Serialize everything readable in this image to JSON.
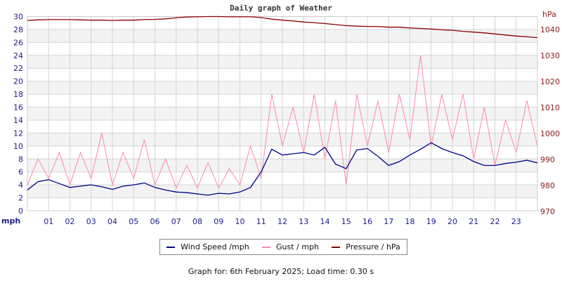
{
  "chart_data": {
    "type": "line",
    "title": "Daily graph of Weather",
    "x": [
      0,
      0.5,
      1,
      1.5,
      2,
      2.5,
      3,
      3.5,
      4,
      4.5,
      5,
      5.5,
      6,
      6.5,
      7,
      7.5,
      8,
      8.5,
      9,
      9.5,
      10,
      10.5,
      11,
      11.5,
      12,
      12.5,
      13,
      13.5,
      14,
      14.5,
      15,
      15.5,
      16,
      16.5,
      17,
      17.5,
      18,
      18.5,
      19,
      19.5,
      20,
      20.5,
      21,
      21.5,
      22,
      22.5,
      23,
      23.5,
      24
    ],
    "x_tick_labels": [
      "01",
      "02",
      "03",
      "04",
      "05",
      "06",
      "07",
      "08",
      "09",
      "10",
      "11",
      "12",
      "13",
      "14",
      "15",
      "16",
      "17",
      "18",
      "19",
      "20",
      "21",
      "22",
      "23"
    ],
    "xlim": [
      0,
      24
    ],
    "left_axis": {
      "label": "mph",
      "ylim": [
        0,
        30
      ],
      "ticks": [
        "0",
        "2",
        "4",
        "6",
        "8",
        "10",
        "12",
        "14",
        "16",
        "18",
        "20",
        "22",
        "24",
        "26",
        "28",
        "30"
      ],
      "color": "#1a1a8c"
    },
    "right_axis": {
      "label": "hPa",
      "ylim": [
        970,
        1044.7
      ],
      "ticks": [
        "970",
        "980",
        "990",
        "1000",
        "1010",
        "1020",
        "1030",
        "1040"
      ],
      "color": "#8b1a1a"
    },
    "grid": true,
    "series": [
      {
        "name": "Wind Speed /mph",
        "axis": "left",
        "color": "#00008b",
        "values": [
          3.2,
          4.5,
          4.8,
          4.2,
          3.6,
          3.8,
          4.0,
          3.7,
          3.3,
          3.8,
          4.0,
          4.3,
          3.6,
          3.2,
          2.9,
          2.8,
          2.6,
          2.4,
          2.7,
          2.6,
          2.9,
          3.6,
          6.0,
          9.5,
          8.6,
          8.8,
          9.0,
          8.6,
          9.8,
          7.2,
          6.5,
          9.4,
          9.6,
          8.4,
          7.0,
          7.6,
          8.6,
          9.5,
          10.5,
          9.6,
          9.0,
          8.5,
          7.6,
          7.0,
          7.0,
          7.3,
          7.5,
          7.8,
          7.4
        ]
      },
      {
        "name": "Gust / mph",
        "axis": "left",
        "color": "#ff88aa",
        "values": [
          4,
          8,
          5,
          9,
          4,
          9,
          5,
          12,
          4,
          9,
          5,
          11,
          4,
          8,
          3.5,
          7,
          3.5,
          7.5,
          3.5,
          6.5,
          4,
          10,
          5,
          18,
          10,
          16,
          9,
          18,
          8,
          17,
          4,
          18,
          10,
          17,
          9,
          18,
          11,
          24,
          10,
          18,
          11,
          18,
          8,
          16,
          7,
          14,
          9,
          17,
          10
        ]
      },
      {
        "name": "Pressure / hPa",
        "axis": "right",
        "color": "#8b0000",
        "values": [
          1043.2,
          1043.4,
          1043.5,
          1043.5,
          1043.5,
          1043.4,
          1043.3,
          1043.3,
          1043.2,
          1043.3,
          1043.3,
          1043.5,
          1043.6,
          1043.8,
          1044.2,
          1044.5,
          1044.6,
          1045,
          1045,
          1044.6,
          1044.6,
          1044.6,
          1044.3,
          1043.7,
          1043.3,
          1043.0,
          1042.6,
          1042.3,
          1042.0,
          1041.6,
          1041.2,
          1041.0,
          1040.9,
          1040.8,
          1040.6,
          1040.6,
          1040.3,
          1040.1,
          1039.9,
          1039.6,
          1039.4,
          1039.0,
          1038.7,
          1038.4,
          1038.0,
          1037.6,
          1037.2,
          1036.9,
          1036.6
        ]
      }
    ],
    "legend_position": "bottom"
  },
  "footer": "Graph for: 6th February 2025; Load time: 0.30 s"
}
